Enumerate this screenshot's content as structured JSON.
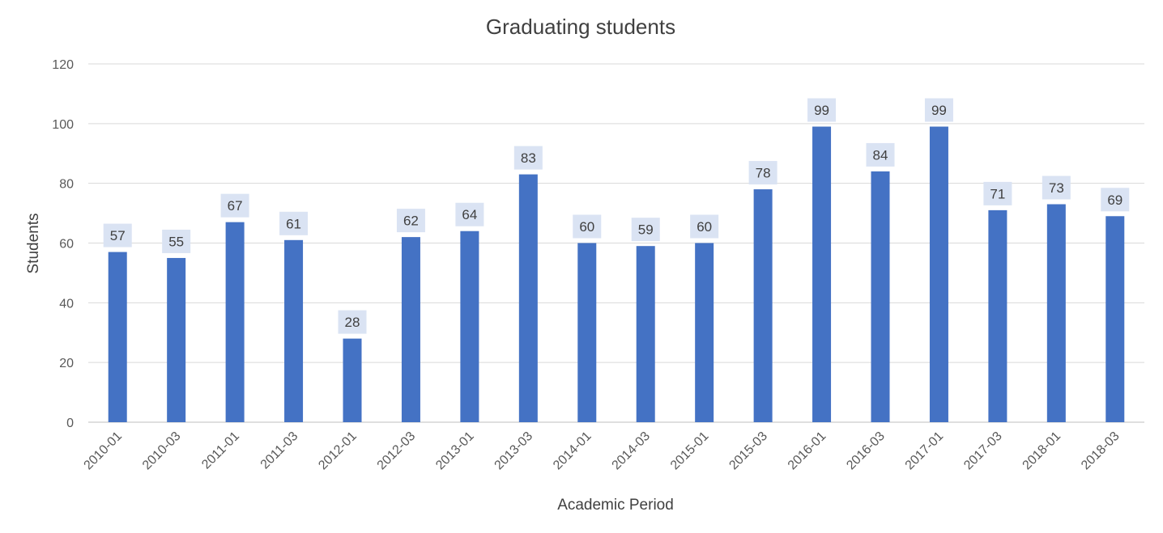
{
  "chart_data": {
    "type": "bar",
    "title": "Graduating students",
    "xlabel": "Academic Period",
    "ylabel": "Students",
    "ylim": [
      0,
      120
    ],
    "yticks": [
      0,
      20,
      40,
      60,
      80,
      100,
      120
    ],
    "grid": true,
    "legend": "none",
    "categories": [
      "2010-01",
      "2010-03",
      "2011-01",
      "2011-03",
      "2012-01",
      "2012-03",
      "2013-01",
      "2013-03",
      "2014-01",
      "2014-03",
      "2015-01",
      "2015-03",
      "2016-01",
      "2016-03",
      "2017-01",
      "2017-03",
      "2018-01",
      "2018-03"
    ],
    "values": [
      57,
      55,
      67,
      61,
      28,
      62,
      64,
      83,
      60,
      59,
      60,
      78,
      99,
      84,
      99,
      71,
      73,
      69
    ],
    "colors": {
      "bar": "#4472C4",
      "data_label_bg": "#DAE3F3",
      "gridline": "#D9D9D9"
    }
  }
}
